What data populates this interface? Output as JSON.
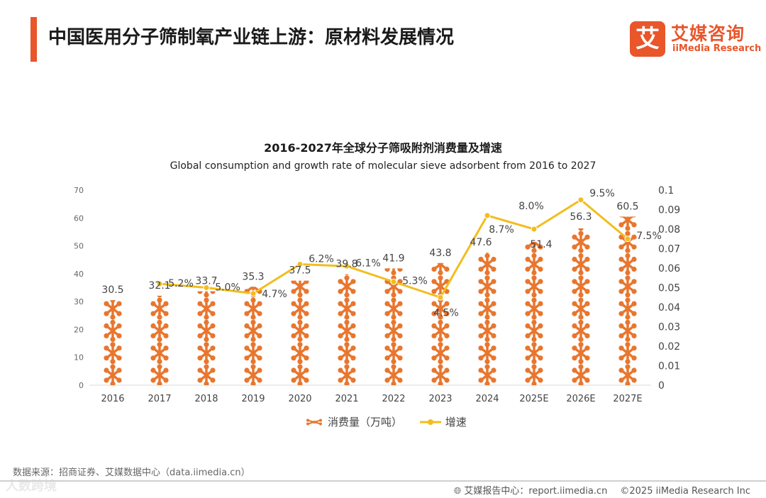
{
  "header": {
    "title": "中国医用分子筛制氧产业链上游：原材料发展情况",
    "logo_mark": "艾",
    "logo_cn": "艾媒咨询",
    "logo_en": "iiMedia Research"
  },
  "chart_data": {
    "type": "bar+line",
    "title": "2016-2027年全球分子筛吸附剂消费量及增速",
    "subtitle": "Global consumption and growth rate of molecular sieve adsorbent from 2016 to 2027",
    "categories": [
      "2016",
      "2017",
      "2018",
      "2019",
      "2020",
      "2021",
      "2022",
      "2023",
      "2024",
      "2025E",
      "2026E",
      "2027E"
    ],
    "series": [
      {
        "name": "消费量（万吨）",
        "axis": "left",
        "kind": "pictorial-bar",
        "values": [
          30.5,
          32.1,
          33.7,
          35.3,
          37.5,
          39.8,
          41.9,
          43.8,
          47.6,
          51.4,
          56.3,
          60.5
        ],
        "labels": [
          "30.5",
          "32.1",
          "33.7",
          "35.3",
          "37.5",
          "39.8",
          "41.9",
          "43.8",
          "47.6",
          "51.4",
          "56.3",
          "60.5"
        ]
      },
      {
        "name": "增速",
        "axis": "right",
        "kind": "line",
        "values": [
          null,
          0.052,
          0.05,
          0.047,
          0.062,
          0.061,
          0.053,
          0.045,
          0.087,
          0.08,
          0.095,
          0.075
        ],
        "labels": [
          "",
          "5.2%",
          "5.0%",
          "4.7%",
          "6.2%",
          "6.1%",
          "5.3%",
          "4.5%",
          "8.7%",
          "8.0%",
          "9.5%",
          "7.5%"
        ]
      }
    ],
    "y_left": {
      "min": 0,
      "max": 70,
      "ticks": [
        "0",
        "10",
        "20",
        "30",
        "40",
        "50",
        "60",
        "70"
      ]
    },
    "y_right": {
      "min": 0,
      "max": 0.1,
      "ticks": [
        "0",
        "0.01",
        "0.02",
        "0.03",
        "0.04",
        "0.05",
        "0.06",
        "0.07",
        "0.08",
        "0.09",
        "0.1"
      ]
    },
    "colors": {
      "bar": "#e8762e",
      "line": "#f2bd1d",
      "axis_text": "#666666",
      "grid": "#d9d9d9"
    }
  },
  "legend": {
    "bar_label": "消费量（万吨）",
    "line_label": "增速"
  },
  "footer": {
    "source": "数据来源：招商证券、艾媒数据中心（data.iimedia.cn）",
    "report": "艾媒报告中心：report.iimedia.cn",
    "copyright": "©2025  iiMedia Research  Inc",
    "watermark": "人数跨境"
  }
}
